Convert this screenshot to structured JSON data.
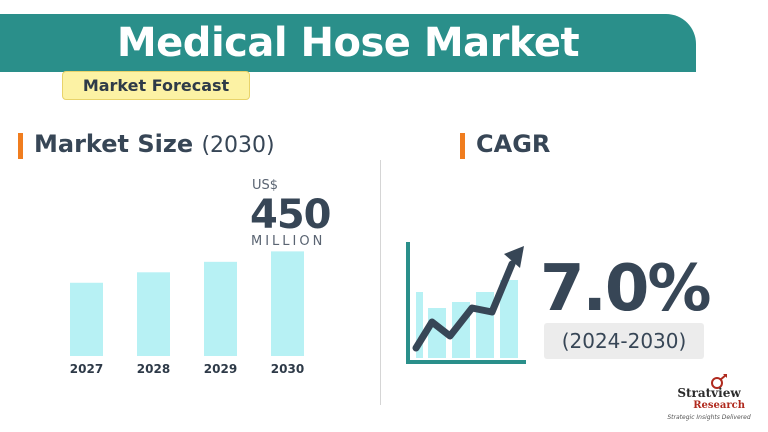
{
  "header": {
    "title": "Medical Hose Market",
    "subtitle": "Market Forecast"
  },
  "market_size": {
    "heading": "Market Size",
    "heading_year": "(2030)",
    "unit_prefix": "US$",
    "value": "450",
    "unit_suffix": "MILLION"
  },
  "cagr": {
    "heading": "CAGR",
    "value": "7.0%",
    "period": "(2024-2030)"
  },
  "logo": {
    "name": "Stratview",
    "research": "Research",
    "tagline": "Strategic Insights Delivered"
  },
  "colors": {
    "banner": "#2a8f8a",
    "accent": "#f07d1f",
    "bar": "#b7f1f4",
    "subtitle_bg": "#fcf2a4",
    "text": "#374656"
  },
  "chart_data": {
    "type": "bar",
    "categories": [
      "2027",
      "2028",
      "2029",
      "2030"
    ],
    "values": [
      375,
      400,
      425,
      450
    ],
    "ylim": [
      200,
      470
    ],
    "grid": false,
    "title": "",
    "xlabel": "",
    "ylabel": ""
  }
}
